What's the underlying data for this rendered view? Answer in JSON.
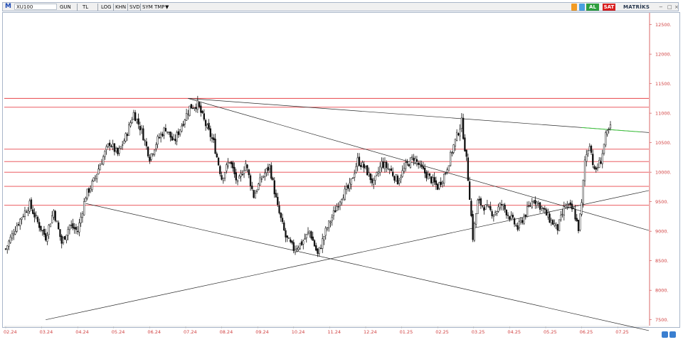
{
  "toolbar": {
    "logo": "M",
    "symbol": "XU100",
    "period": "GUN",
    "currency": "TL",
    "log": "LOG",
    "khn": "KHN",
    "svd": "SVD",
    "sym_tmp": "SYM TMP",
    "sym_arrow": "▼",
    "buy": "AL",
    "sell": "SAT",
    "brand": "MATRİKS",
    "win_min": "−",
    "win_max": "□",
    "win_close": "×"
  },
  "colors": {
    "level_line": "#e8454a",
    "trend_line": "#2b2b2b",
    "recent_trend": "#3cc43c",
    "candle": "#111111",
    "axis_text": "#d14141"
  },
  "chart_data": {
    "type": "candlestick",
    "x_ticks": [
      "02.24",
      "03.24",
      "04.24",
      "05.24",
      "06.24",
      "07.24",
      "08.24",
      "09.24",
      "10.24",
      "11.24",
      "12.24",
      "01.25",
      "02.25",
      "03.25",
      "04.25",
      "05.25",
      "06.25",
      "07.25"
    ],
    "y_ticks": [
      "12500.",
      "12000.",
      "11500.",
      "11000.",
      "10500.",
      "10000.",
      "9500.",
      "9000.",
      "8500.",
      "8000.",
      "7500."
    ],
    "ylim": [
      7400,
      12700
    ],
    "horizontal_levels": [
      11250,
      11100,
      10390,
      10180,
      10000,
      9760,
      9440
    ],
    "close_path": [
      [
        0,
        8700
      ],
      [
        5,
        9000
      ],
      [
        10,
        9250
      ],
      [
        15,
        9450
      ],
      [
        20,
        9150
      ],
      [
        25,
        8900
      ],
      [
        30,
        9350
      ],
      [
        35,
        8800
      ],
      [
        40,
        9100
      ],
      [
        45,
        9000
      ],
      [
        50,
        9600
      ],
      [
        55,
        9850
      ],
      [
        60,
        10200
      ],
      [
        65,
        10500
      ],
      [
        70,
        10300
      ],
      [
        75,
        10600
      ],
      [
        80,
        11000
      ],
      [
        85,
        10700
      ],
      [
        90,
        10250
      ],
      [
        95,
        10550
      ],
      [
        100,
        10750
      ],
      [
        105,
        10500
      ],
      [
        110,
        10800
      ],
      [
        115,
        11100
      ],
      [
        120,
        11150
      ],
      [
        125,
        10800
      ],
      [
        130,
        10500
      ],
      [
        135,
        9900
      ],
      [
        140,
        10200
      ],
      [
        145,
        9800
      ],
      [
        150,
        10150
      ],
      [
        155,
        9600
      ],
      [
        160,
        9900
      ],
      [
        165,
        10100
      ],
      [
        170,
        9400
      ],
      [
        175,
        8900
      ],
      [
        180,
        8700
      ],
      [
        185,
        8800
      ],
      [
        190,
        9000
      ],
      [
        195,
        8600
      ],
      [
        200,
        9000
      ],
      [
        205,
        9300
      ],
      [
        210,
        9600
      ],
      [
        215,
        9750
      ],
      [
        220,
        10200
      ],
      [
        225,
        10050
      ],
      [
        230,
        9800
      ],
      [
        235,
        10150
      ],
      [
        240,
        10050
      ],
      [
        245,
        9850
      ],
      [
        250,
        10100
      ],
      [
        255,
        10250
      ],
      [
        260,
        10050
      ],
      [
        265,
        9900
      ],
      [
        270,
        9750
      ],
      [
        275,
        10000
      ],
      [
        280,
        10450
      ],
      [
        285,
        10850
      ],
      [
        288,
        10200
      ],
      [
        290,
        9600
      ],
      [
        292,
        8900
      ],
      [
        295,
        9500
      ],
      [
        300,
        9400
      ],
      [
        305,
        9300
      ],
      [
        310,
        9450
      ],
      [
        315,
        9250
      ],
      [
        320,
        9050
      ],
      [
        325,
        9300
      ],
      [
        330,
        9550
      ],
      [
        335,
        9400
      ],
      [
        340,
        9200
      ],
      [
        345,
        9050
      ],
      [
        350,
        9450
      ],
      [
        355,
        9350
      ],
      [
        358,
        9050
      ],
      [
        360,
        9450
      ],
      [
        362,
        10200
      ],
      [
        365,
        10500
      ],
      [
        368,
        10000
      ],
      [
        372,
        10200
      ],
      [
        375,
        10600
      ],
      [
        378,
        10750
      ]
    ],
    "trend_lines": [
      {
        "from": [
          114,
          11250
        ],
        "to": [
          378,
          10720
        ]
      },
      {
        "from": [
          114,
          11250
        ],
        "to": [
          378,
          9200
        ]
      },
      {
        "from": [
          50,
          9470
        ],
        "to": [
          372,
          7500
        ]
      },
      {
        "from": [
          25,
          7500
        ],
        "to": [
          378,
          9550
        ]
      }
    ]
  }
}
